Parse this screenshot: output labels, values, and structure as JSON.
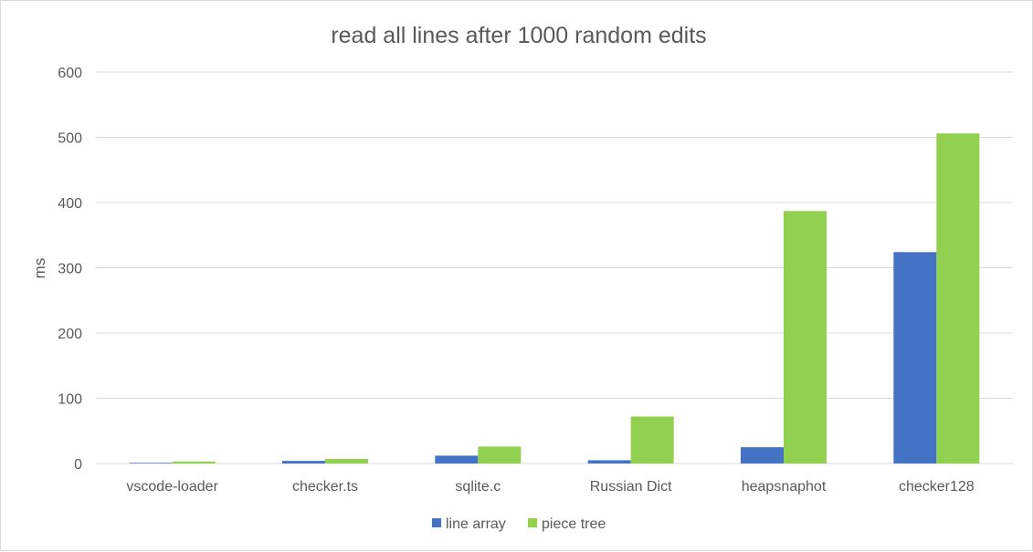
{
  "chart_data": {
    "type": "bar",
    "title": "read all lines after 1000 random edits",
    "xlabel": "",
    "ylabel": "ms",
    "ylim": [
      0,
      600
    ],
    "yticks": [
      0,
      100,
      200,
      300,
      400,
      500,
      600
    ],
    "grid": true,
    "legend_position": "bottom",
    "categories": [
      "vscode-loader",
      "checker.ts",
      "sqlite.c",
      "Russian Dict",
      "heapsnaphot",
      "checker128"
    ],
    "series": [
      {
        "name": "line array",
        "color": "#4472c4",
        "values": [
          1,
          4,
          12,
          5,
          25,
          324
        ]
      },
      {
        "name": "piece tree",
        "color": "#92d050",
        "values": [
          3,
          7,
          26,
          72,
          387,
          506
        ]
      }
    ]
  }
}
